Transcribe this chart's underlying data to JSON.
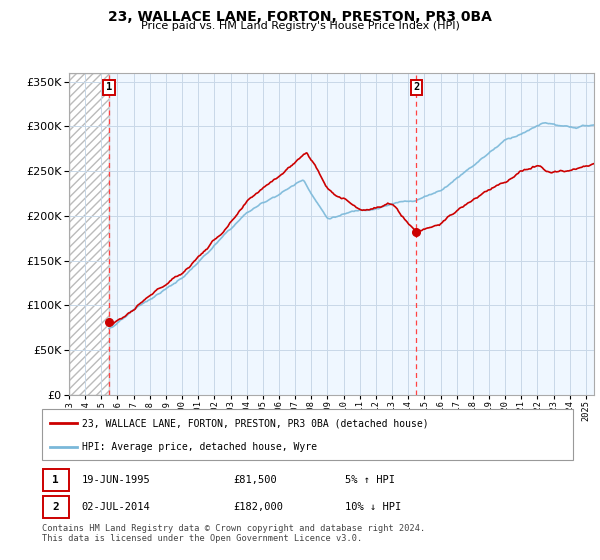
{
  "title": "23, WALLACE LANE, FORTON, PRESTON, PR3 0BA",
  "subtitle": "Price paid vs. HM Land Registry's House Price Index (HPI)",
  "ytick_values": [
    0,
    50000,
    100000,
    150000,
    200000,
    250000,
    300000,
    350000
  ],
  "ylim": [
    0,
    360000
  ],
  "xlim_start": 1993.0,
  "xlim_end": 2025.5,
  "sale1_date": 1995.47,
  "sale1_price": 81500,
  "sale2_date": 2014.5,
  "sale2_price": 182000,
  "legend_line1": "23, WALLACE LANE, FORTON, PRESTON, PR3 0BA (detached house)",
  "legend_line2": "HPI: Average price, detached house, Wyre",
  "table_row1": [
    "1",
    "19-JUN-1995",
    "£81,500",
    "5% ↑ HPI"
  ],
  "table_row2": [
    "2",
    "02-JUL-2014",
    "£182,000",
    "10% ↓ HPI"
  ],
  "footer": "Contains HM Land Registry data © Crown copyright and database right 2024.\nThis data is licensed under the Open Government Licence v3.0.",
  "hpi_color": "#7ab8d9",
  "sold_color": "#cc0000",
  "dashed_color": "#ff4444",
  "hatch_color": "#bbbbbb",
  "grid_color": "#c8d8e8",
  "bg_color": "#ddeeff",
  "box_fill": "#eef4fb"
}
